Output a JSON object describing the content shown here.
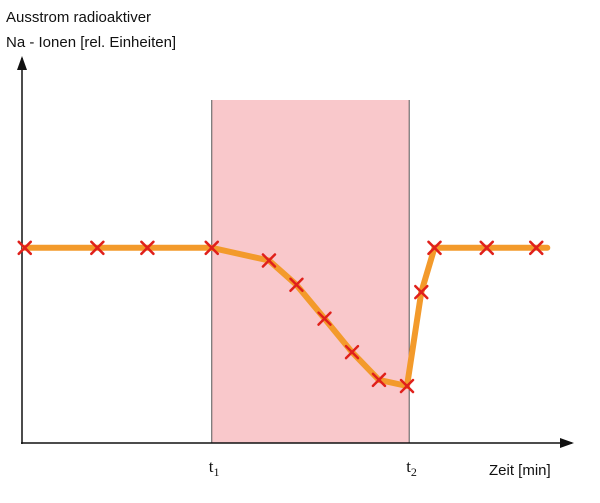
{
  "chart_data": {
    "type": "line",
    "ylabel": [
      "Ausstrom radioaktiver",
      "Na - Ionen [rel. Einheiten]"
    ],
    "xlabel": "Zeit [min]",
    "xlim": [
      0,
      100
    ],
    "ylim": [
      0,
      100
    ],
    "grid": false,
    "legend": "none",
    "x_ticks": [
      {
        "main": "t",
        "sub": "1",
        "x": 34.5
      },
      {
        "main": "t",
        "sub": "2",
        "x": 70.4
      }
    ],
    "shaded_region": {
      "x_start": 34.5,
      "x_end": 70.4,
      "color": "#f9c8cb"
    },
    "series": [
      {
        "line_color": "#f39a2b",
        "marker": "x",
        "marker_color": "#e0201b",
        "points": [
          {
            "x": 0.5,
            "y": 50.7
          },
          {
            "x": 13.7,
            "y": 50.7
          },
          {
            "x": 22.8,
            "y": 50.7
          },
          {
            "x": 34.5,
            "y": 50.7
          },
          {
            "x": 44.9,
            "y": 47.4
          },
          {
            "x": 49.9,
            "y": 41.1
          },
          {
            "x": 55.0,
            "y": 32.3
          },
          {
            "x": 60.0,
            "y": 23.6
          },
          {
            "x": 64.9,
            "y": 16.4
          },
          {
            "x": 70.0,
            "y": 14.8
          },
          {
            "x": 72.6,
            "y": 39.2
          },
          {
            "x": 75.0,
            "y": 50.7
          },
          {
            "x": 84.5,
            "y": 50.7
          },
          {
            "x": 93.5,
            "y": 50.7
          },
          {
            "x": 95.5,
            "y": 50.7
          }
        ],
        "marker_indices": [
          0,
          1,
          2,
          3,
          4,
          5,
          6,
          7,
          8,
          9,
          10,
          11,
          12,
          13
        ]
      }
    ]
  }
}
